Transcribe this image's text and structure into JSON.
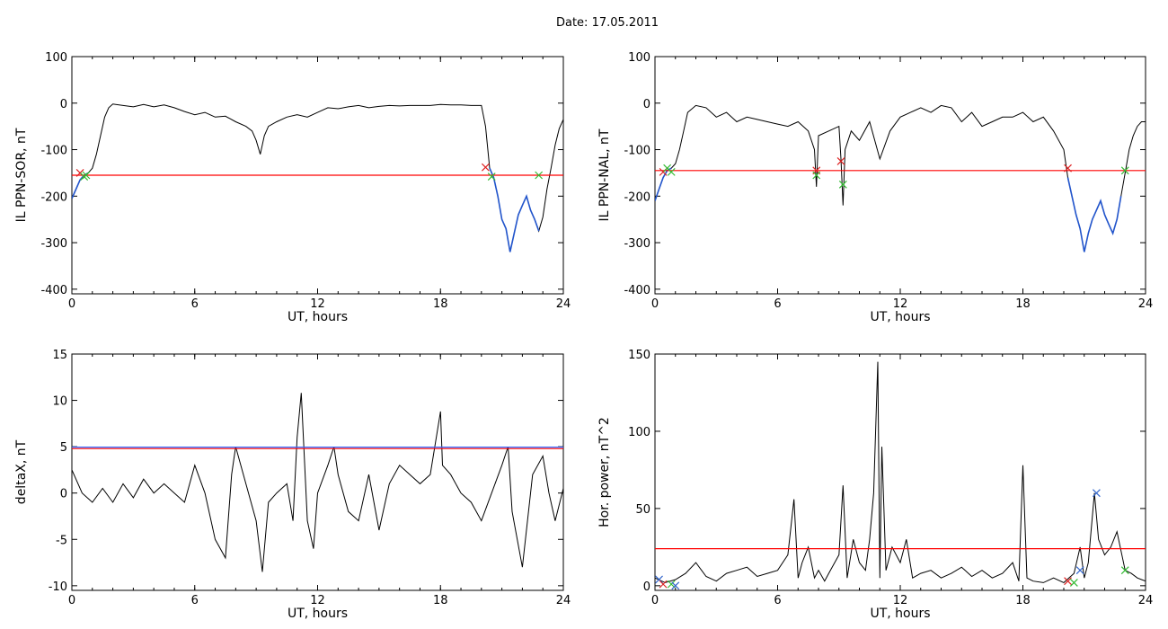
{
  "page": {
    "date_label": "Date:  17.05.2011"
  },
  "chart_data": [
    {
      "type": "line",
      "title": "",
      "xlabel": "UT, hours",
      "ylabel": "IL PPN-SOR, nT",
      "xlim": [
        0,
        24
      ],
      "ylim": [
        -410,
        100
      ],
      "xticks": [
        0,
        6,
        12,
        18,
        24
      ],
      "yticks": [
        -400,
        -300,
        -200,
        -100,
        0,
        100
      ],
      "grid": false,
      "threshold": -155,
      "threshold_color": "#ff0000",
      "series": [
        {
          "color": "#000000",
          "x": [
            0,
            0.2,
            0.4,
            0.6,
            0.8,
            1.0,
            1.2,
            1.4,
            1.6,
            1.8,
            2.0,
            2.5,
            3.0,
            3.5,
            4.0,
            4.5,
            5.0,
            5.5,
            6.0,
            6.5,
            7.0,
            7.5,
            8.0,
            8.5,
            8.8,
            9.0,
            9.2,
            9.4,
            9.6,
            10.0,
            10.5,
            11.0,
            11.5,
            12.0,
            12.5,
            13.0,
            13.5,
            14.0,
            14.5,
            15.0,
            15.5,
            16.0,
            16.5,
            17.0,
            17.5,
            18.0,
            18.5,
            19.0,
            19.5,
            20.0,
            20.2,
            20.4,
            20.6,
            20.8,
            21.0,
            21.2,
            21.4,
            21.6,
            21.8,
            22.0,
            22.2,
            22.4,
            22.6,
            22.8,
            23.0,
            23.2,
            23.4,
            23.6,
            23.8,
            24.0
          ],
          "y": [
            -205,
            -185,
            -165,
            -155,
            -150,
            -140,
            -110,
            -70,
            -30,
            -10,
            -2,
            -5,
            -8,
            -3,
            -8,
            -4,
            -10,
            -18,
            -25,
            -20,
            -30,
            -28,
            -40,
            -50,
            -60,
            -80,
            -110,
            -70,
            -50,
            -40,
            -30,
            -25,
            -30,
            -20,
            -10,
            -12,
            -8,
            -5,
            -10,
            -7,
            -5,
            -6,
            -5,
            -5,
            -5,
            -3,
            -4,
            -4,
            -5,
            -5,
            -50,
            -140,
            -160,
            -200,
            -250,
            -270,
            -320,
            -280,
            -240,
            -220,
            -200,
            -230,
            -250,
            -275,
            -245,
            -185,
            -140,
            -90,
            -55,
            -35
          ]
        },
        {
          "color": "#2255cc",
          "x": [
            0,
            0.2,
            0.4,
            0.6,
            0.8,
            20.4,
            20.6,
            20.8,
            21.0,
            21.2,
            21.4,
            21.6,
            21.8,
            22.0,
            22.2,
            22.4,
            22.6,
            22.8
          ],
          "y": [
            -205,
            -185,
            -165,
            -155,
            -150,
            -140,
            -160,
            -200,
            -250,
            -270,
            -320,
            -280,
            -240,
            -220,
            -200,
            -230,
            -250,
            -275
          ],
          "segments": [
            [
              0,
              5
            ],
            [
              5,
              18
            ]
          ]
        }
      ],
      "markers": [
        {
          "x": 0.4,
          "y": -150,
          "color": "#dd2222"
        },
        {
          "x": 0.6,
          "y": -158,
          "color": "#33bb33"
        },
        {
          "x": 0.7,
          "y": -155,
          "color": "#33bb33"
        },
        {
          "x": 20.2,
          "y": -138,
          "color": "#dd2222"
        },
        {
          "x": 20.5,
          "y": -158,
          "color": "#33bb33"
        },
        {
          "x": 22.8,
          "y": -155,
          "color": "#33bb33"
        }
      ]
    },
    {
      "type": "line",
      "title": "",
      "xlabel": "UT, hours",
      "ylabel": "IL PPN-NAL, nT",
      "xlim": [
        0,
        24
      ],
      "ylim": [
        -410,
        100
      ],
      "xticks": [
        0,
        6,
        12,
        18,
        24
      ],
      "yticks": [
        -400,
        -300,
        -200,
        -100,
        0,
        100
      ],
      "grid": false,
      "threshold": -145,
      "threshold_color": "#ff0000",
      "series": [
        {
          "color": "#000000",
          "x": [
            0,
            0.2,
            0.4,
            0.6,
            0.8,
            1.0,
            1.2,
            1.4,
            1.6,
            2.0,
            2.5,
            3.0,
            3.5,
            4.0,
            4.5,
            5.0,
            5.5,
            6.0,
            6.5,
            7.0,
            7.5,
            7.8,
            7.9,
            8.0,
            8.5,
            9.0,
            9.1,
            9.2,
            9.3,
            9.6,
            10.0,
            10.5,
            11.0,
            11.5,
            12.0,
            12.5,
            13.0,
            13.5,
            14.0,
            14.5,
            15.0,
            15.5,
            16.0,
            16.5,
            17.0,
            17.5,
            18.0,
            18.5,
            19.0,
            19.5,
            20.0,
            20.2,
            20.4,
            20.6,
            20.8,
            21.0,
            21.2,
            21.4,
            21.6,
            21.8,
            22.0,
            22.2,
            22.4,
            22.6,
            22.8,
            23.0,
            23.2,
            23.4,
            23.6,
            23.8,
            24.0
          ],
          "y": [
            -210,
            -185,
            -160,
            -145,
            -140,
            -130,
            -100,
            -60,
            -20,
            -5,
            -10,
            -30,
            -20,
            -40,
            -30,
            -35,
            -40,
            -45,
            -50,
            -40,
            -60,
            -100,
            -180,
            -70,
            -60,
            -50,
            -120,
            -220,
            -100,
            -60,
            -80,
            -40,
            -120,
            -60,
            -30,
            -20,
            -10,
            -20,
            -5,
            -10,
            -40,
            -20,
            -50,
            -40,
            -30,
            -30,
            -20,
            -40,
            -30,
            -60,
            -100,
            -160,
            -200,
            -240,
            -270,
            -320,
            -280,
            -250,
            -230,
            -210,
            -240,
            -260,
            -280,
            -250,
            -200,
            -150,
            -100,
            -70,
            -50,
            -40,
            -40
          ],
          "segments": null
        },
        {
          "color": "#2255cc",
          "x": [
            0,
            0.2,
            0.4,
            0.6,
            0.8,
            20.2,
            20.4,
            20.6,
            20.8,
            21.0,
            21.2,
            21.4,
            21.6,
            21.8,
            22.0,
            22.2,
            22.4,
            22.6,
            22.8
          ],
          "y": [
            -210,
            -185,
            -160,
            -145,
            -140,
            -160,
            -200,
            -240,
            -270,
            -320,
            -280,
            -250,
            -230,
            -210,
            -240,
            -260,
            -280,
            -250,
            -200
          ],
          "segments": [
            [
              0,
              5
            ],
            [
              5,
              19
            ]
          ]
        }
      ],
      "markers": [
        {
          "x": 0.4,
          "y": -148,
          "color": "#dd2222"
        },
        {
          "x": 0.6,
          "y": -140,
          "color": "#33bb33"
        },
        {
          "x": 0.8,
          "y": -148,
          "color": "#33bb33"
        },
        {
          "x": 7.9,
          "y": -145,
          "color": "#dd2222"
        },
        {
          "x": 7.9,
          "y": -155,
          "color": "#33bb33"
        },
        {
          "x": 9.1,
          "y": -125,
          "color": "#dd2222"
        },
        {
          "x": 9.2,
          "y": -175,
          "color": "#33bb33"
        },
        {
          "x": 20.2,
          "y": -140,
          "color": "#dd2222"
        },
        {
          "x": 23.0,
          "y": -145,
          "color": "#33bb33"
        }
      ]
    },
    {
      "type": "line",
      "title": "",
      "xlabel": "UT, hours",
      "ylabel": "deltaX, nT",
      "xlim": [
        0,
        24
      ],
      "ylim": [
        -10.5,
        15
      ],
      "xticks": [
        0,
        6,
        12,
        18,
        24
      ],
      "yticks": [
        -10,
        -5,
        0,
        5,
        10,
        15
      ],
      "grid": false,
      "threshold": 4.8,
      "threshold_color": "#ff0000",
      "threshold2": 4.95,
      "threshold2_color": "#3366ff",
      "series": [
        {
          "color": "#000000",
          "x": [
            0,
            0.5,
            1.0,
            1.5,
            2.0,
            2.5,
            3.0,
            3.5,
            4.0,
            4.5,
            5.0,
            5.5,
            6.0,
            6.5,
            7.0,
            7.5,
            7.8,
            8.0,
            8.5,
            9.0,
            9.3,
            9.6,
            10.0,
            10.5,
            10.8,
            11.0,
            11.2,
            11.5,
            11.8,
            12.0,
            12.5,
            12.8,
            13.0,
            13.5,
            14.0,
            14.5,
            15.0,
            15.5,
            16.0,
            16.5,
            17.0,
            17.5,
            18.0,
            18.1,
            18.5,
            19.0,
            19.5,
            20.0,
            20.5,
            21.0,
            21.3,
            21.5,
            22.0,
            22.5,
            23.0,
            23.3,
            23.6,
            24.0
          ],
          "y": [
            2.5,
            0,
            -1,
            0.5,
            -1,
            1,
            -0.5,
            1.5,
            0,
            1,
            0,
            -1,
            3,
            0,
            -5,
            -7,
            2,
            5,
            1,
            -3,
            -8.5,
            -1,
            0,
            1,
            -3,
            6,
            10.8,
            -3,
            -6,
            0,
            3,
            5,
            2,
            -2,
            -3,
            2,
            -4,
            1,
            3,
            2,
            1,
            2,
            8.8,
            3,
            2,
            0,
            -1,
            -3,
            0,
            3,
            5,
            -2,
            -8,
            2,
            4,
            0,
            -3,
            0.5
          ],
          "segments": null
        }
      ],
      "markers": []
    },
    {
      "type": "line",
      "title": "",
      "xlabel": "UT, hours",
      "ylabel": "Hor. power, nT^2",
      "xlim": [
        0,
        24
      ],
      "ylim": [
        -3,
        150
      ],
      "xticks": [
        0,
        6,
        12,
        18,
        24
      ],
      "yticks": [
        0,
        50,
        100,
        150
      ],
      "grid": false,
      "threshold": 24,
      "threshold_color": "#ff0000",
      "series": [
        {
          "color": "#000000",
          "x": [
            0,
            0.5,
            1.0,
            1.5,
            2.0,
            2.5,
            3.0,
            3.5,
            4.0,
            4.5,
            5.0,
            5.5,
            6.0,
            6.5,
            6.8,
            7.0,
            7.2,
            7.5,
            7.8,
            8.0,
            8.3,
            8.5,
            9.0,
            9.2,
            9.4,
            9.7,
            10.0,
            10.3,
            10.5,
            10.7,
            10.9,
            11.0,
            11.1,
            11.3,
            11.6,
            12.0,
            12.3,
            12.6,
            13.0,
            13.5,
            14.0,
            14.5,
            15.0,
            15.5,
            16.0,
            16.5,
            17.0,
            17.5,
            17.8,
            18.0,
            18.2,
            18.5,
            19.0,
            19.5,
            20.0,
            20.5,
            20.8,
            21.0,
            21.2,
            21.5,
            21.7,
            22.0,
            22.3,
            22.6,
            23.0,
            23.3,
            23.6,
            24.0
          ],
          "y": [
            5,
            2,
            4,
            8,
            15,
            6,
            3,
            8,
            10,
            12,
            6,
            8,
            10,
            20,
            56,
            5,
            15,
            25,
            5,
            10,
            3,
            8,
            20,
            65,
            5,
            30,
            15,
            10,
            30,
            60,
            145,
            5,
            90,
            10,
            25,
            15,
            30,
            5,
            8,
            10,
            5,
            8,
            12,
            6,
            10,
            5,
            8,
            15,
            3,
            78,
            5,
            3,
            2,
            5,
            2,
            8,
            25,
            5,
            15,
            60,
            30,
            20,
            25,
            35,
            10,
            8,
            5,
            3
          ],
          "segments": null
        }
      ],
      "markers": [
        {
          "x": 0.2,
          "y": 4,
          "color": "#3366cc"
        },
        {
          "x": 0.4,
          "y": 1,
          "color": "#dd2222"
        },
        {
          "x": 0.8,
          "y": 1,
          "color": "#33bb33"
        },
        {
          "x": 1.0,
          "y": 0,
          "color": "#3366cc"
        },
        {
          "x": 20.2,
          "y": 3,
          "color": "#dd2222"
        },
        {
          "x": 20.5,
          "y": 2,
          "color": "#33bb33"
        },
        {
          "x": 20.8,
          "y": 10,
          "color": "#3366cc"
        },
        {
          "x": 21.6,
          "y": 60,
          "color": "#3366cc"
        },
        {
          "x": 23.0,
          "y": 10,
          "color": "#33bb33"
        }
      ]
    }
  ]
}
